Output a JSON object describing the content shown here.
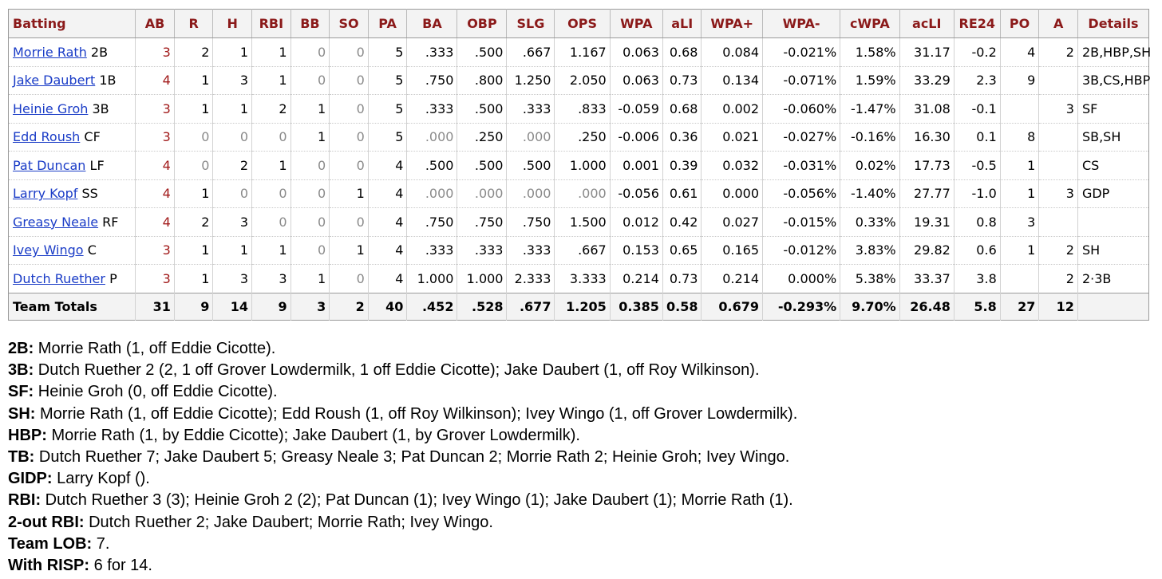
{
  "batting": {
    "columns": [
      "Batting",
      "AB",
      "R",
      "H",
      "RBI",
      "BB",
      "SO",
      "PA",
      "BA",
      "OBP",
      "SLG",
      "OPS",
      "WPA",
      "aLI",
      "WPA+",
      "WPA-",
      "cWPA",
      "acLI",
      "RE24",
      "PO",
      "A",
      "Details"
    ],
    "rows": [
      {
        "name": "Morrie Rath",
        "pos": "2B",
        "AB": "3",
        "R": "2",
        "H": "1",
        "RBI": "1",
        "BB": "0",
        "SO": "0",
        "PA": "5",
        "BA": ".333",
        "OBP": ".500",
        "SLG": ".667",
        "OPS": "1.167",
        "WPA": "0.063",
        "aLI": "0.68",
        "WPAplus": "0.084",
        "WPAminus": "-0.021%",
        "cWPA": "1.58%",
        "acLI": "31.17",
        "RE24": "-0.2",
        "PO": "4",
        "A": "2",
        "Details": "2B,HBP,SH"
      },
      {
        "name": "Jake Daubert",
        "pos": "1B",
        "AB": "4",
        "R": "1",
        "H": "3",
        "RBI": "1",
        "BB": "0",
        "SO": "0",
        "PA": "5",
        "BA": ".750",
        "OBP": ".800",
        "SLG": "1.250",
        "OPS": "2.050",
        "WPA": "0.063",
        "aLI": "0.73",
        "WPAplus": "0.134",
        "WPAminus": "-0.071%",
        "cWPA": "1.59%",
        "acLI": "33.29",
        "RE24": "2.3",
        "PO": "9",
        "A": "",
        "Details": "3B,CS,HBP"
      },
      {
        "name": "Heinie Groh",
        "pos": "3B",
        "AB": "3",
        "R": "1",
        "H": "1",
        "RBI": "2",
        "BB": "1",
        "SO": "0",
        "PA": "5",
        "BA": ".333",
        "OBP": ".500",
        "SLG": ".333",
        "OPS": ".833",
        "WPA": "-0.059",
        "aLI": "0.68",
        "WPAplus": "0.002",
        "WPAminus": "-0.060%",
        "cWPA": "-1.47%",
        "acLI": "31.08",
        "RE24": "-0.1",
        "PO": "",
        "A": "3",
        "Details": "SF"
      },
      {
        "name": "Edd Roush",
        "pos": "CF",
        "AB": "3",
        "R": "0",
        "H": "0",
        "RBI": "0",
        "BB": "1",
        "SO": "0",
        "PA": "5",
        "BA": ".000",
        "OBP": ".250",
        "SLG": ".000",
        "OPS": ".250",
        "WPA": "-0.006",
        "aLI": "0.36",
        "WPAplus": "0.021",
        "WPAminus": "-0.027%",
        "cWPA": "-0.16%",
        "acLI": "16.30",
        "RE24": "0.1",
        "PO": "8",
        "A": "",
        "Details": "SB,SH"
      },
      {
        "name": "Pat Duncan",
        "pos": "LF",
        "AB": "4",
        "R": "0",
        "H": "2",
        "RBI": "1",
        "BB": "0",
        "SO": "0",
        "PA": "4",
        "BA": ".500",
        "OBP": ".500",
        "SLG": ".500",
        "OPS": "1.000",
        "WPA": "0.001",
        "aLI": "0.39",
        "WPAplus": "0.032",
        "WPAminus": "-0.031%",
        "cWPA": "0.02%",
        "acLI": "17.73",
        "RE24": "-0.5",
        "PO": "1",
        "A": "",
        "Details": "CS"
      },
      {
        "name": "Larry Kopf",
        "pos": "SS",
        "AB": "4",
        "R": "1",
        "H": "0",
        "RBI": "0",
        "BB": "0",
        "SO": "1",
        "PA": "4",
        "BA": ".000",
        "OBP": ".000",
        "SLG": ".000",
        "OPS": ".000",
        "WPA": "-0.056",
        "aLI": "0.61",
        "WPAplus": "0.000",
        "WPAminus": "-0.056%",
        "cWPA": "-1.40%",
        "acLI": "27.77",
        "RE24": "-1.0",
        "PO": "1",
        "A": "3",
        "Details": "GDP"
      },
      {
        "name": "Greasy Neale",
        "pos": "RF",
        "AB": "4",
        "R": "2",
        "H": "3",
        "RBI": "0",
        "BB": "0",
        "SO": "0",
        "PA": "4",
        "BA": ".750",
        "OBP": ".750",
        "SLG": ".750",
        "OPS": "1.500",
        "WPA": "0.012",
        "aLI": "0.42",
        "WPAplus": "0.027",
        "WPAminus": "-0.015%",
        "cWPA": "0.33%",
        "acLI": "19.31",
        "RE24": "0.8",
        "PO": "3",
        "A": "",
        "Details": ""
      },
      {
        "name": "Ivey Wingo",
        "pos": "C",
        "AB": "3",
        "R": "1",
        "H": "1",
        "RBI": "1",
        "BB": "0",
        "SO": "1",
        "PA": "4",
        "BA": ".333",
        "OBP": ".333",
        "SLG": ".333",
        "OPS": ".667",
        "WPA": "0.153",
        "aLI": "0.65",
        "WPAplus": "0.165",
        "WPAminus": "-0.012%",
        "cWPA": "3.83%",
        "acLI": "29.82",
        "RE24": "0.6",
        "PO": "1",
        "A": "2",
        "Details": "SH"
      },
      {
        "name": "Dutch Ruether",
        "pos": "P",
        "AB": "3",
        "R": "1",
        "H": "3",
        "RBI": "3",
        "BB": "1",
        "SO": "0",
        "PA": "4",
        "BA": "1.000",
        "OBP": "1.000",
        "SLG": "2.333",
        "OPS": "3.333",
        "WPA": "0.214",
        "aLI": "0.73",
        "WPAplus": "0.214",
        "WPAminus": "0.000%",
        "cWPA": "5.38%",
        "acLI": "33.37",
        "RE24": "3.8",
        "PO": "",
        "A": "2",
        "Details": "2·3B"
      }
    ],
    "totals": {
      "label": "Team Totals",
      "AB": "31",
      "R": "9",
      "H": "14",
      "RBI": "9",
      "BB": "3",
      "SO": "2",
      "PA": "40",
      "BA": ".452",
      "OBP": ".528",
      "SLG": ".677",
      "OPS": "1.205",
      "WPA": "0.385",
      "aLI": "0.58",
      "WPAplus": "0.679",
      "WPAminus": "-0.293%",
      "cWPA": "9.70%",
      "acLI": "26.48",
      "RE24": "5.8",
      "PO": "27",
      "A": "12",
      "Details": ""
    }
  },
  "notes": [
    {
      "label": "2B:",
      "text": " Morrie Rath (1, off Eddie Cicotte)."
    },
    {
      "label": "3B:",
      "text": " Dutch Ruether 2 (2, 1 off Grover Lowdermilk, 1 off Eddie Cicotte); Jake Daubert (1, off Roy Wilkinson)."
    },
    {
      "label": "SF:",
      "text": " Heinie Groh (0, off Eddie Cicotte)."
    },
    {
      "label": "SH:",
      "text": " Morrie Rath (1, off Eddie Cicotte); Edd Roush (1, off Roy Wilkinson); Ivey Wingo (1, off Grover Lowdermilk)."
    },
    {
      "label": "HBP:",
      "text": " Morrie Rath (1, by Eddie Cicotte); Jake Daubert (1, by Grover Lowdermilk)."
    },
    {
      "label": "TB:",
      "text": " Dutch Ruether 7; Jake Daubert 5; Greasy Neale 3; Pat Duncan 2; Morrie Rath 2; Heinie Groh; Ivey Wingo."
    },
    {
      "label": "GIDP:",
      "text": " Larry Kopf ()."
    },
    {
      "label": "RBI:",
      "text": " Dutch Ruether 3 (3); Heinie Groh 2 (2); Pat Duncan (1); Ivey Wingo (1); Jake Daubert (1); Morrie Rath (1)."
    },
    {
      "label": "2-out RBI:",
      "text": " Dutch Ruether 2; Jake Daubert; Morrie Rath; Ivey Wingo."
    },
    {
      "label": "Team LOB:",
      "text": " 7."
    },
    {
      "label": "With RISP:",
      "text": " 6 for 14."
    }
  ]
}
